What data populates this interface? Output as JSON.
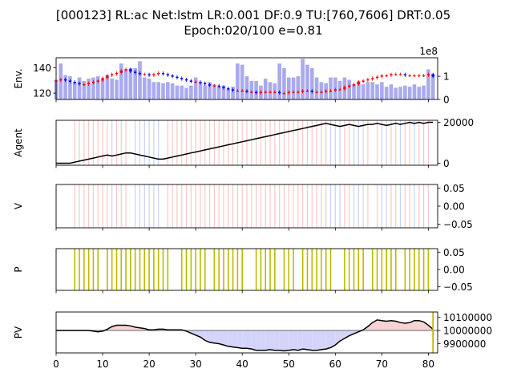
{
  "title_line1": "[000123] RL:ac Net:lstm LR:0.001 DF:0.9 TU:[760,7606] DRT:0.05",
  "title_line2": "Epoch:020/100 e=0.81",
  "chart_data": [
    {
      "type": "candlestick",
      "ylabel": "Env.",
      "yticks": [
        120,
        140
      ],
      "ylim": [
        115,
        148
      ],
      "volume_ticks": [
        "0",
        "1"
      ],
      "volume_exponent_label": "1e8",
      "volume_ylim": [
        0,
        1.8
      ],
      "x": [
        0,
        1,
        2,
        3,
        4,
        5,
        6,
        7,
        8,
        9,
        10,
        11,
        12,
        13,
        14,
        15,
        16,
        17,
        18,
        19,
        20,
        21,
        22,
        23,
        24,
        25,
        26,
        27,
        28,
        29,
        30,
        31,
        32,
        33,
        34,
        35,
        36,
        37,
        38,
        39,
        40,
        41,
        42,
        43,
        44,
        45,
        46,
        47,
        48,
        49,
        50,
        51,
        52,
        53,
        54,
        55,
        56,
        57,
        58,
        59,
        60,
        61,
        62,
        63,
        64,
        65,
        66,
        67,
        68,
        69,
        70,
        71,
        72,
        73,
        74,
        75,
        76,
        77,
        78,
        79,
        80,
        81
      ],
      "close": [
        130,
        131,
        130,
        129,
        128,
        127,
        127,
        128,
        129,
        130,
        132,
        134,
        135,
        136,
        138,
        139,
        137,
        136,
        135,
        135,
        134,
        135,
        136,
        135,
        134,
        133,
        132,
        131,
        130,
        129,
        129,
        128,
        127,
        126,
        126,
        125,
        124,
        123,
        122,
        122,
        122,
        121,
        121,
        120,
        121,
        121,
        121,
        121,
        120,
        120,
        121,
        121,
        121,
        122,
        122,
        121,
        121,
        121,
        122,
        122,
        123,
        123,
        125,
        126,
        127,
        129,
        130,
        131,
        132,
        133,
        134,
        134,
        135,
        135,
        135,
        134,
        134,
        134,
        134,
        134,
        135,
        133
      ],
      "volume": [
        0.85,
        1.55,
        1.05,
        1.0,
        0.75,
        0.95,
        0.8,
        0.9,
        0.95,
        1.0,
        0.85,
        1.05,
        0.9,
        0.85,
        1.55,
        1.3,
        1.35,
        1.35,
        1.65,
        0.95,
        0.9,
        0.75,
        0.75,
        0.7,
        0.75,
        0.7,
        0.6,
        0.6,
        0.5,
        0.6,
        0.95,
        0.75,
        0.6,
        0.75,
        0.65,
        0.55,
        0.6,
        0.45,
        0.55,
        1.55,
        1.5,
        1.0,
        0.8,
        0.8,
        0.6,
        0.9,
        0.75,
        0.7,
        1.55,
        1.35,
        0.95,
        0.95,
        1.0,
        1.75,
        1.5,
        1.35,
        0.95,
        0.75,
        0.7,
        0.95,
        0.95,
        0.8,
        0.95,
        0.85,
        0.65,
        0.8,
        0.65,
        0.75,
        0.75,
        0.65,
        0.75,
        0.55,
        0.65,
        0.5,
        0.55,
        0.6,
        0.55,
        0.65,
        0.55,
        0.6,
        1.3,
        1.1
      ]
    },
    {
      "type": "line",
      "ylabel": "Agent",
      "yticks": [
        "0",
        "20000"
      ],
      "ylim": [
        -1000,
        21000
      ],
      "y": [
        0,
        0,
        0,
        0,
        500,
        1000,
        1500,
        2000,
        2500,
        3000,
        3500,
        4000,
        3500,
        4000,
        4500,
        5000,
        5000,
        4500,
        4000,
        3500,
        3000,
        2500,
        2000,
        2000,
        2500,
        3000,
        3500,
        4000,
        4500,
        5000,
        5500,
        6000,
        6500,
        7000,
        7500,
        8000,
        8500,
        9000,
        9500,
        10000,
        10500,
        11000,
        11500,
        12000,
        12500,
        13000,
        13500,
        14000,
        14500,
        15000,
        15500,
        16000,
        16500,
        17000,
        17500,
        18000,
        18500,
        19000,
        19500,
        19000,
        18500,
        18000,
        18500,
        19000,
        18500,
        18000,
        18500,
        19000,
        19000,
        19500,
        19000,
        18500,
        19000,
        19500,
        19000,
        19500,
        20000,
        19500,
        20000,
        19500,
        20000,
        20000
      ]
    },
    {
      "type": "events",
      "ylabel": "V",
      "yticks": [
        "0.05",
        "0.00",
        "−0.05"
      ],
      "ylim": [
        -0.06,
        0.06
      ]
    },
    {
      "type": "events",
      "ylabel": "P",
      "yticks": [
        "0.05",
        "0.00",
        "−0.05"
      ],
      "ylim": [
        -0.06,
        0.06
      ],
      "events": [
        4,
        5,
        6,
        7,
        8,
        9,
        11,
        12,
        13,
        14,
        15,
        16,
        17,
        18,
        19,
        20,
        21,
        22,
        23,
        24,
        27,
        28,
        29,
        30,
        31,
        32,
        34,
        35,
        36,
        37,
        38,
        39,
        40,
        43,
        44,
        45,
        46,
        47,
        49,
        50,
        51,
        53,
        54,
        55,
        56,
        57,
        58,
        59,
        62,
        63,
        64,
        65,
        66,
        68,
        69,
        70,
        71,
        72,
        73,
        75,
        76,
        77,
        78,
        79,
        80
      ]
    },
    {
      "type": "area",
      "ylabel": "PV",
      "yticks": [
        "10100000",
        "10000000",
        "9900000"
      ],
      "ylim": [
        9830000,
        10140000
      ],
      "baseline": 10000000,
      "marker_x": 81,
      "y": [
        10000000,
        10000000,
        10000000,
        10000000,
        10000000,
        10000000,
        10000000,
        10000000,
        9995000,
        9990000,
        9995000,
        10010000,
        10030000,
        10040000,
        10040000,
        10040000,
        10035000,
        10025000,
        10020000,
        10015000,
        10005000,
        10005000,
        10010000,
        10010000,
        10005000,
        10005000,
        10005000,
        10005000,
        9995000,
        9980000,
        9965000,
        9950000,
        9925000,
        9910000,
        9905000,
        9900000,
        9890000,
        9880000,
        9875000,
        9870000,
        9865000,
        9865000,
        9860000,
        9850000,
        9850000,
        9850000,
        9855000,
        9850000,
        9850000,
        9845000,
        9850000,
        9855000,
        9850000,
        9860000,
        9855000,
        9850000,
        9850000,
        9855000,
        9860000,
        9870000,
        9890000,
        9920000,
        9940000,
        9960000,
        9975000,
        9990000,
        10005000,
        10030000,
        10060000,
        10080000,
        10075000,
        10070000,
        10075000,
        10070000,
        10060000,
        10055000,
        10060000,
        10075000,
        10075000,
        10065000,
        10040000,
        10010000
      ]
    }
  ],
  "x_axis": {
    "xlim": [
      0,
      82
    ],
    "ticks": [
      0,
      10,
      20,
      30,
      40,
      50,
      60,
      70,
      80
    ],
    "tick_labels": [
      "0",
      "10",
      "20",
      "30",
      "40",
      "50",
      "60",
      "70",
      "80"
    ]
  },
  "colors": {
    "bar": "#aaaaee",
    "up": "#ff0000",
    "down": "#0000ff",
    "event_red": "#f8c8c8",
    "event_blue": "#c8d2f5",
    "event_olive": "#bbbb00",
    "fill_pos": "#f7d3d3",
    "fill_neg": "#d4d4fb",
    "line": "#000000",
    "baseline": "#808080"
  }
}
